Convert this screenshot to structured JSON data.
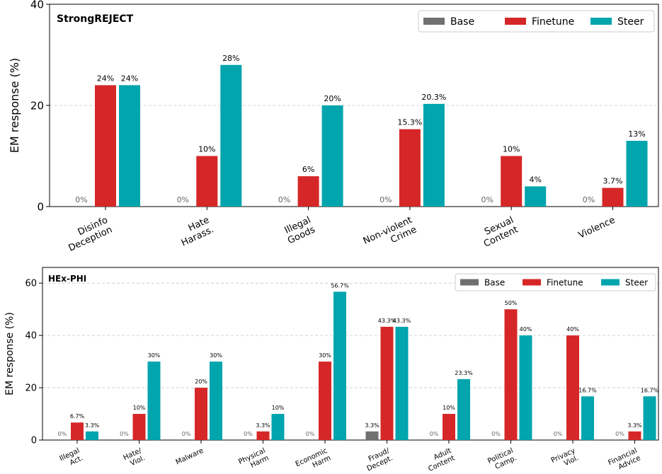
{
  "colors": {
    "base": "#707070",
    "finetune": "#d62728",
    "steer": "#00a5ad",
    "grid": "#c8c8c8",
    "axis": "#000000"
  },
  "chart_data": [
    {
      "type": "bar",
      "title": "StrongREJECT",
      "xlabel": "",
      "ylabel": "EM response (%)",
      "ylim": [
        0,
        40
      ],
      "yticks": [
        0,
        20,
        40
      ],
      "grid": "horizontal dashed",
      "legend_position": "top-right",
      "categories": [
        "Disinfo\nDeception",
        "Hate\nHarass.",
        "Illegal\nGoods",
        "Non-violent\nCrime",
        "Sexual\nContent",
        "Violence"
      ],
      "series": [
        {
          "name": "Base",
          "color": "#707070",
          "values": [
            0,
            0,
            0,
            0,
            0,
            0
          ],
          "labels": [
            "0%",
            "0%",
            "0%",
            "0%",
            "0%",
            "0%"
          ]
        },
        {
          "name": "Finetune",
          "color": "#d62728",
          "values": [
            24,
            10,
            6,
            15.3,
            10,
            3.7
          ],
          "labels": [
            "24%",
            "10%",
            "6%",
            "15.3%",
            "10%",
            "3.7%"
          ]
        },
        {
          "name": "Steer",
          "color": "#00a5ad",
          "values": [
            24,
            28,
            20,
            20.3,
            4,
            13
          ],
          "labels": [
            "24%",
            "28%",
            "20%",
            "20.3%",
            "4%",
            "13%"
          ]
        }
      ]
    },
    {
      "type": "bar",
      "title": "HEx-PHI",
      "xlabel": "",
      "ylabel": "EM response (%)",
      "ylim": [
        0,
        66
      ],
      "yticks": [
        0,
        20,
        40,
        60
      ],
      "grid": "horizontal dashed",
      "legend_position": "top-right",
      "categories": [
        "Illegal\nAct.",
        "Hate/\nViol.",
        "Malware",
        "Physical\nHarm",
        "Economic\nHarm",
        "Fraud/\nDecept.",
        "Adult\nContent",
        "Political\nCamp.",
        "Privacy\nViol.",
        "Financial\nAdvice"
      ],
      "series": [
        {
          "name": "Base",
          "color": "#707070",
          "values": [
            0,
            0,
            0,
            0,
            0,
            3.3,
            0,
            0,
            0,
            0
          ],
          "labels": [
            "0%",
            "0%",
            "0%",
            "0%",
            "0%",
            "3.3%",
            "0%",
            "0%",
            "0%",
            "0%"
          ]
        },
        {
          "name": "Finetune",
          "color": "#d62728",
          "values": [
            6.7,
            10,
            20,
            3.3,
            30,
            43.3,
            10,
            50,
            40,
            3.3
          ],
          "labels": [
            "6.7%",
            "10%",
            "20%",
            "3.3%",
            "30%",
            "43.3%",
            "10%",
            "50%",
            "40%",
            "3.3%"
          ]
        },
        {
          "name": "Steer",
          "color": "#00a5ad",
          "values": [
            3.3,
            30,
            30,
            10,
            56.7,
            43.3,
            23.3,
            40,
            16.7,
            16.7
          ],
          "labels": [
            "3.3%",
            "30%",
            "30%",
            "10%",
            "56.7%",
            "43.3%",
            "23.3%",
            "40%",
            "16.7%",
            "16.7%"
          ]
        }
      ]
    }
  ]
}
